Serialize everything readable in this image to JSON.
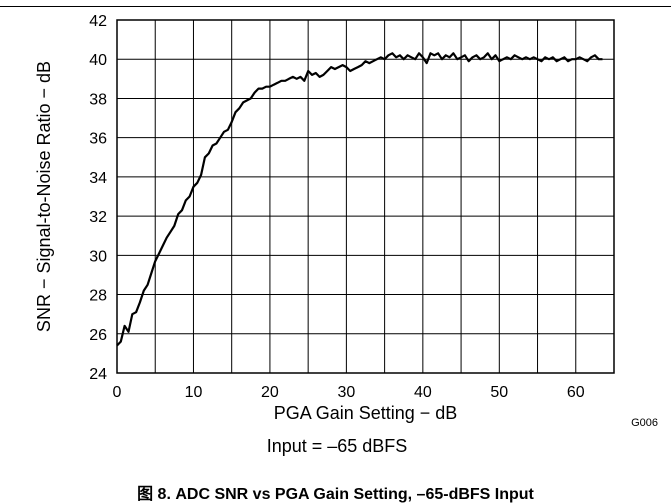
{
  "chart_data": {
    "type": "line",
    "title": "",
    "xlabel": "PGA Gain Setting − dB",
    "ylabel": "SNR − Signal-to-Noise Ratio − dB",
    "xlim": [
      0,
      65
    ],
    "ylim": [
      24,
      42
    ],
    "xticks": [
      0,
      10,
      20,
      30,
      40,
      50,
      60
    ],
    "yticks": [
      24,
      26,
      28,
      30,
      32,
      34,
      36,
      38,
      40,
      42
    ],
    "grid": true,
    "legend": "none",
    "figure_id": "G006",
    "annotation": "Input = –65 dBFS",
    "series": [
      {
        "name": "",
        "color": "#000000",
        "x": [
          0,
          0.5,
          1,
          1.5,
          2,
          2.5,
          3,
          3.5,
          4,
          4.5,
          5,
          5.5,
          6,
          6.5,
          7,
          7.5,
          8,
          8.5,
          9,
          9.5,
          10,
          10.5,
          11,
          11.5,
          12,
          12.5,
          13,
          13.5,
          14,
          14.5,
          15,
          15.5,
          16,
          16.5,
          17,
          17.5,
          18,
          18.5,
          19,
          19.5,
          20,
          20.5,
          21,
          21.5,
          22,
          22.5,
          23,
          23.5,
          24,
          24.5,
          25,
          25.5,
          26,
          26.5,
          27,
          27.5,
          28,
          28.5,
          29,
          29.5,
          30,
          30.5,
          31,
          31.5,
          32,
          32.5,
          33,
          33.5,
          34,
          34.5,
          35,
          35.5,
          36,
          36.5,
          37,
          37.5,
          38,
          38.5,
          39,
          39.5,
          40,
          40.5,
          41,
          41.5,
          42,
          42.5,
          43,
          43.5,
          44,
          44.5,
          45,
          45.5,
          46,
          46.5,
          47,
          47.5,
          48,
          48.5,
          49,
          49.5,
          50,
          50.5,
          51,
          51.5,
          52,
          52.5,
          53,
          53.5,
          54,
          54.5,
          55,
          55.5,
          56,
          56.5,
          57,
          57.5,
          58,
          58.5,
          59,
          59.5,
          60,
          60.5,
          61,
          61.5,
          62,
          62.5,
          63,
          63.5
        ],
        "y": [
          25.4,
          25.6,
          26.4,
          26.1,
          27.0,
          27.1,
          27.6,
          28.2,
          28.5,
          29.1,
          29.7,
          30.1,
          30.5,
          30.9,
          31.2,
          31.5,
          32.1,
          32.3,
          32.8,
          33.0,
          33.5,
          33.7,
          34.1,
          35.0,
          35.2,
          35.6,
          35.7,
          36.0,
          36.3,
          36.4,
          36.8,
          37.3,
          37.5,
          37.8,
          37.9,
          38.0,
          38.3,
          38.5,
          38.5,
          38.6,
          38.6,
          38.7,
          38.8,
          38.9,
          38.9,
          39.0,
          39.1,
          39.0,
          39.1,
          38.9,
          39.4,
          39.2,
          39.3,
          39.1,
          39.2,
          39.4,
          39.6,
          39.5,
          39.6,
          39.7,
          39.6,
          39.4,
          39.5,
          39.6,
          39.7,
          39.9,
          39.8,
          39.9,
          40.0,
          40.1,
          40.0,
          40.2,
          40.3,
          40.1,
          40.2,
          40.0,
          40.2,
          40.1,
          40.0,
          40.3,
          40.1,
          39.8,
          40.3,
          40.2,
          40.3,
          40.0,
          40.2,
          40.1,
          40.3,
          40.0,
          40.1,
          40.2,
          39.9,
          40.1,
          40.2,
          40.0,
          40.1,
          40.3,
          40.0,
          40.2,
          39.9,
          40.0,
          40.1,
          40.0,
          40.2,
          40.1,
          40.0,
          40.1,
          40.0,
          40.1,
          40.0,
          39.9,
          40.1,
          40.0,
          40.1,
          39.9,
          40.0,
          40.1,
          39.9,
          40.0,
          40.0,
          40.1,
          40.0,
          39.9,
          40.1,
          40.2,
          40.0,
          40.0
        ]
      }
    ]
  },
  "caption": "图 8. ADC SNR vs PGA Gain Setting, –65-dBFS Input"
}
